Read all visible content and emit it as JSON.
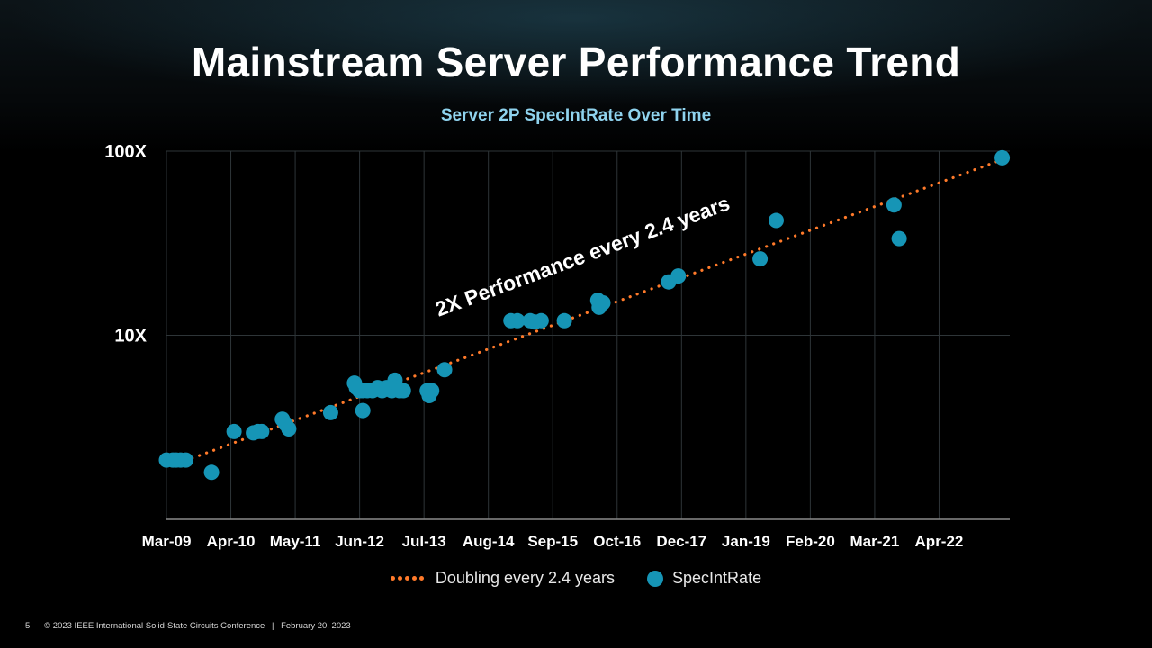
{
  "slide": {
    "title": "Mainstream Server Performance Trend",
    "page_number": "5",
    "copyright": "© 2023 IEEE International Solid-State Circuits Conference",
    "separator": "|",
    "date": "February 20, 2023"
  },
  "colors": {
    "trend": "#ff7a2a",
    "points": "#1695b6",
    "subtitle": "#8fd3ee",
    "grid": "#2e3538"
  },
  "chart_data": {
    "type": "scatter",
    "title": "Server 2P SpecIntRate Over Time",
    "annotation": "2X Performance every 2.4 years",
    "x_tick_labels": [
      "Mar-09",
      "Apr-10",
      "May-11",
      "Jun-12",
      "Jul-13",
      "Aug-14",
      "Sep-15",
      "Oct-16",
      "Dec-17",
      "Jan-19",
      "Feb-20",
      "Mar-21",
      "Apr-22"
    ],
    "x_unit": "years since Mar-09",
    "xlim": [
      0,
      13
    ],
    "y_scale": "log",
    "ylim": [
      1,
      100
    ],
    "y_ticks": [
      {
        "value": 10,
        "label": "10X"
      },
      {
        "value": 100,
        "label": "100X"
      }
    ],
    "legend": {
      "trend": "Doubling every 2.4 years",
      "points": "SpecIntRate"
    },
    "series": [
      {
        "name": "Doubling every 2.4 years",
        "kind": "trend",
        "x_start": 0.4,
        "x_end": 12.98,
        "y_start": 2.15,
        "y_end": 90,
        "doubling_years": 2.4
      },
      {
        "name": "SpecIntRate",
        "kind": "points",
        "points": [
          [
            0.0,
            2.1
          ],
          [
            0.1,
            2.1
          ],
          [
            0.15,
            2.1
          ],
          [
            0.22,
            2.1
          ],
          [
            0.3,
            2.1
          ],
          [
            0.7,
            1.8
          ],
          [
            1.05,
            3.0
          ],
          [
            1.35,
            2.95
          ],
          [
            1.42,
            3.0
          ],
          [
            1.48,
            3.0
          ],
          [
            1.8,
            3.5
          ],
          [
            1.85,
            3.3
          ],
          [
            1.9,
            3.1
          ],
          [
            2.55,
            3.8
          ],
          [
            2.92,
            5.5
          ],
          [
            2.95,
            5.2
          ],
          [
            3.0,
            5.0
          ],
          [
            3.05,
            5.0
          ],
          [
            3.12,
            5.0
          ],
          [
            3.2,
            5.0
          ],
          [
            3.28,
            5.2
          ],
          [
            3.35,
            5.0
          ],
          [
            3.42,
            5.2
          ],
          [
            3.5,
            5.0
          ],
          [
            3.55,
            5.7
          ],
          [
            3.58,
            5.2
          ],
          [
            3.62,
            5.0
          ],
          [
            3.68,
            5.0
          ],
          [
            3.05,
            3.9
          ],
          [
            4.05,
            5.0
          ],
          [
            4.08,
            4.7
          ],
          [
            4.12,
            5.0
          ],
          [
            4.32,
            6.5
          ],
          [
            5.35,
            12.0
          ],
          [
            5.45,
            12.0
          ],
          [
            5.65,
            12.0
          ],
          [
            5.72,
            11.8
          ],
          [
            5.82,
            12.0
          ],
          [
            6.18,
            12.0
          ],
          [
            6.7,
            15.5
          ],
          [
            6.75,
            15.0
          ],
          [
            6.72,
            14.2
          ],
          [
            6.78,
            15.0
          ],
          [
            7.8,
            19.5
          ],
          [
            7.95,
            21.0
          ],
          [
            9.22,
            26.0
          ],
          [
            9.47,
            42.0
          ],
          [
            11.3,
            51.0
          ],
          [
            11.38,
            33.5
          ],
          [
            12.98,
            92.0
          ]
        ]
      }
    ]
  }
}
